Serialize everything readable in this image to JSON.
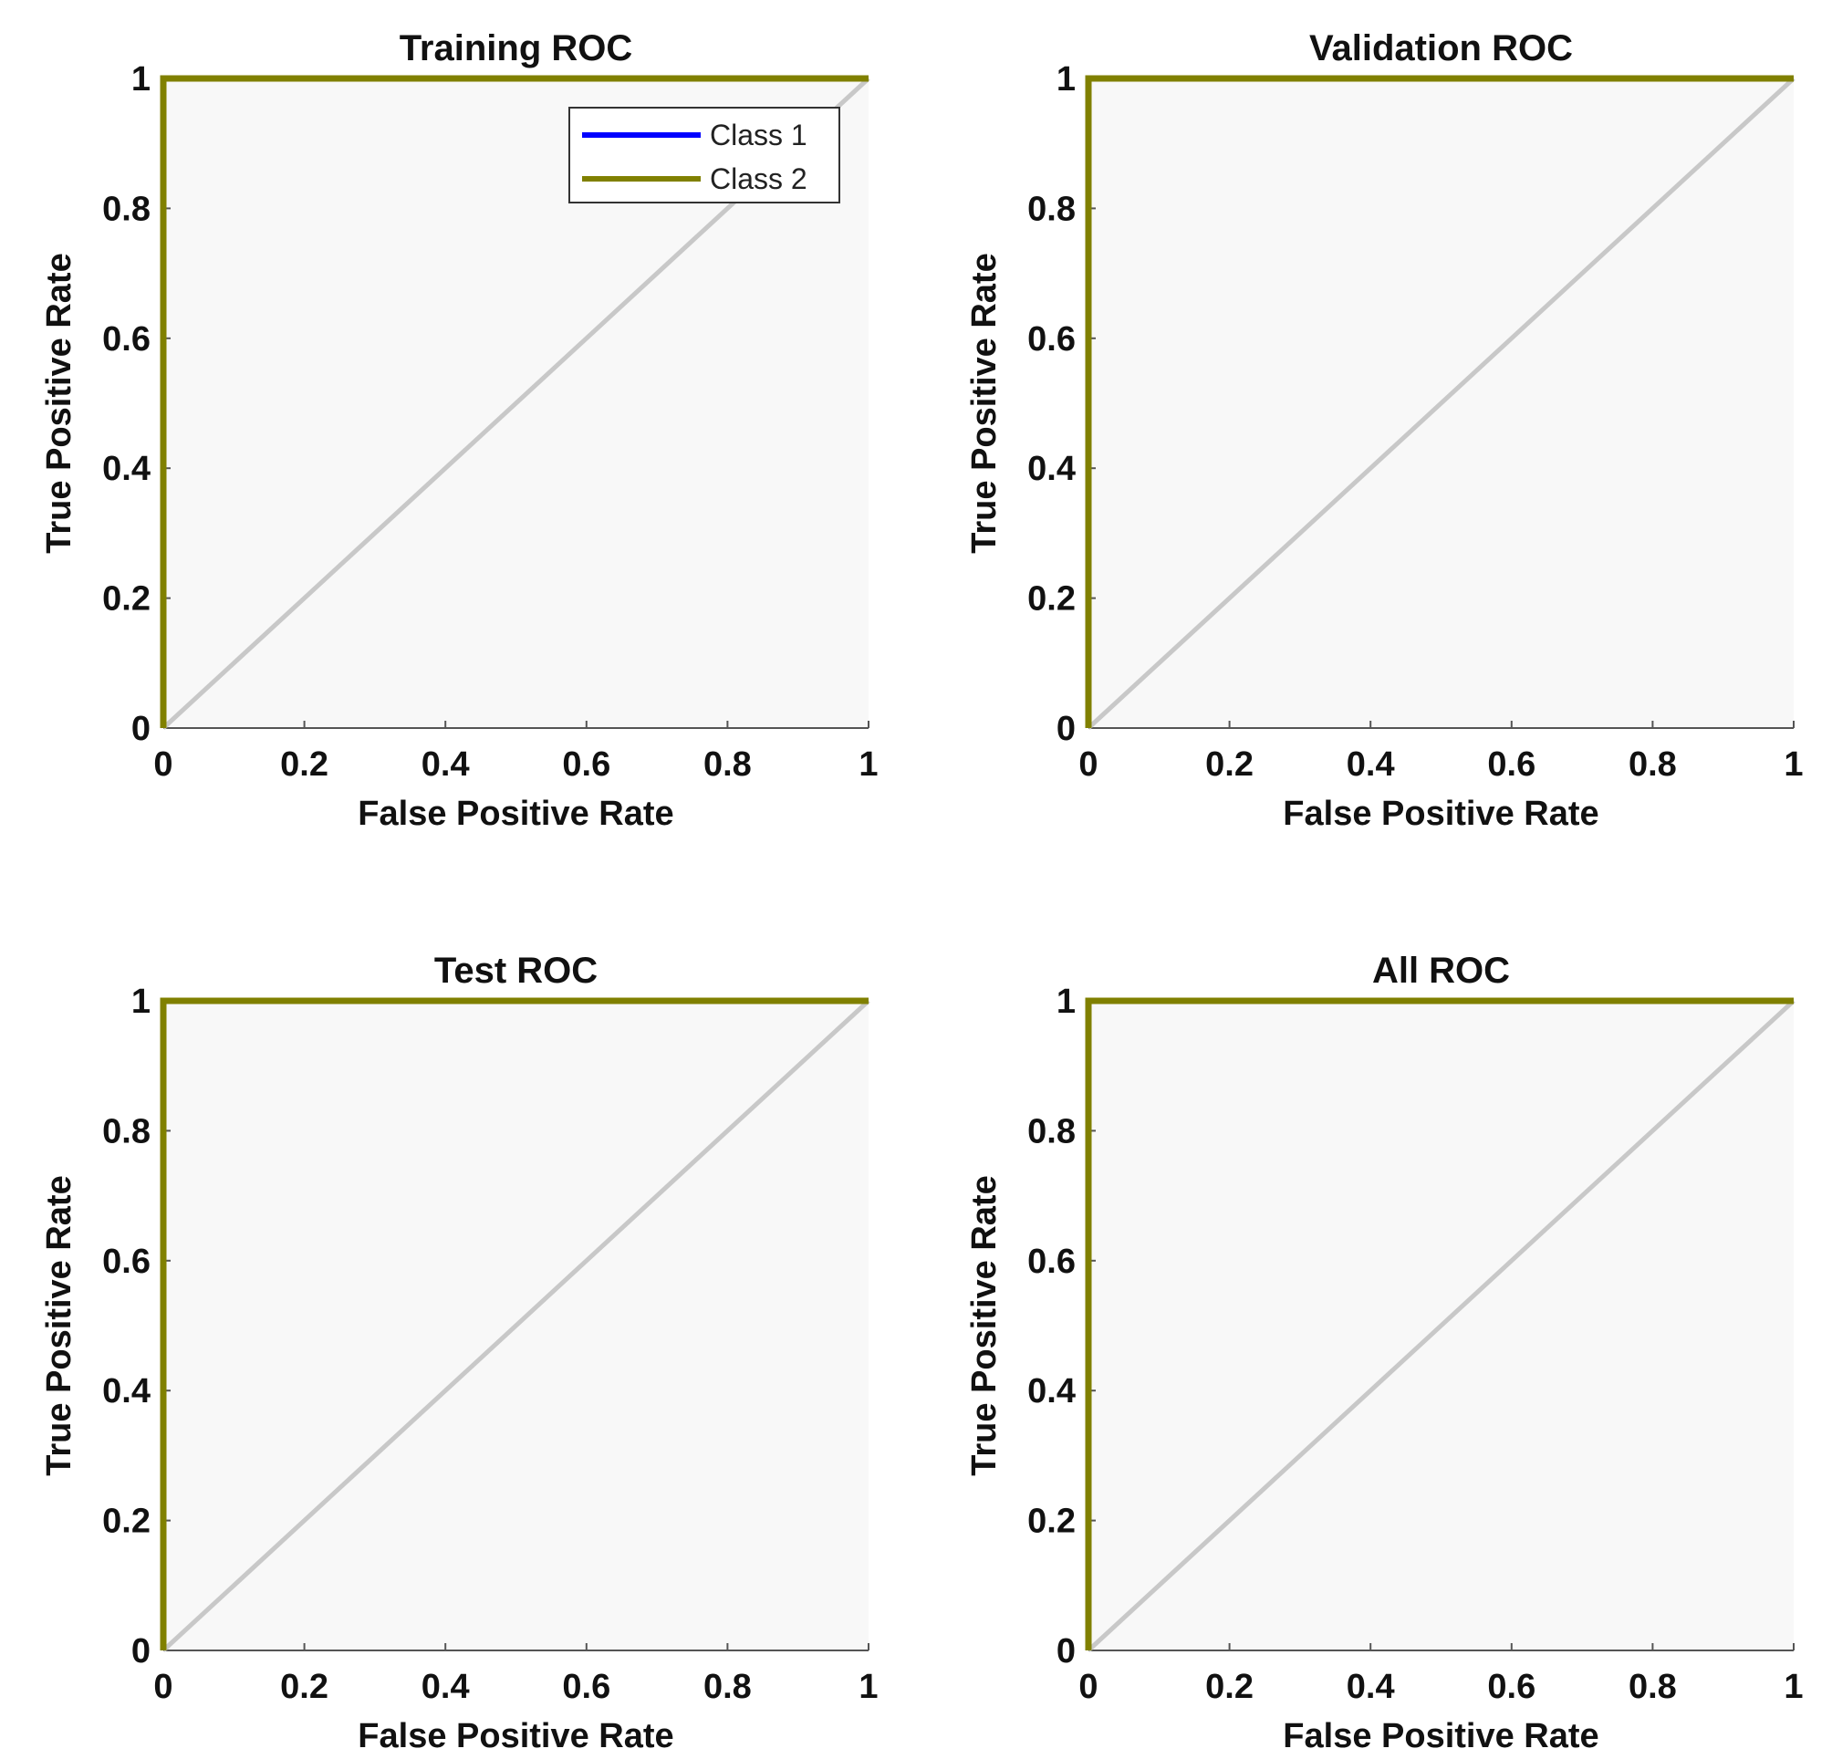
{
  "chart_data": [
    {
      "type": "line",
      "title": "Training ROC",
      "xlabel": "False Positive Rate",
      "ylabel": "True Positive Rate",
      "xlim": [
        0,
        1
      ],
      "ylim": [
        0,
        1
      ],
      "xticks": [
        0,
        0.2,
        0.4,
        0.6,
        0.8,
        1
      ],
      "yticks": [
        0,
        0.2,
        0.4,
        0.6,
        0.8,
        1
      ],
      "xtick_labels": [
        "0",
        "0.2",
        "0.4",
        "0.6",
        "0.8",
        "1"
      ],
      "ytick_labels": [
        "0",
        "0.2",
        "0.4",
        "0.6",
        "0.8",
        "1"
      ],
      "legend": {
        "show": true,
        "position": "top-right"
      },
      "diagonal": {
        "x": [
          0,
          1
        ],
        "y": [
          0,
          1
        ],
        "color": "#c8c8c8"
      },
      "series": [
        {
          "name": "Class 1",
          "color": "#0000ff",
          "x": [
            0,
            0,
            1
          ],
          "y": [
            0,
            1,
            1
          ]
        },
        {
          "name": "Class 2",
          "color": "#808000",
          "x": [
            0,
            0,
            1
          ],
          "y": [
            0,
            1,
            1
          ]
        }
      ]
    },
    {
      "type": "line",
      "title": "Validation ROC",
      "xlabel": "False Positive Rate",
      "ylabel": "True Positive Rate",
      "xlim": [
        0,
        1
      ],
      "ylim": [
        0,
        1
      ],
      "xticks": [
        0,
        0.2,
        0.4,
        0.6,
        0.8,
        1
      ],
      "yticks": [
        0,
        0.2,
        0.4,
        0.6,
        0.8,
        1
      ],
      "xtick_labels": [
        "0",
        "0.2",
        "0.4",
        "0.6",
        "0.8",
        "1"
      ],
      "ytick_labels": [
        "0",
        "0.2",
        "0.4",
        "0.6",
        "0.8",
        "1"
      ],
      "legend": {
        "show": false
      },
      "diagonal": {
        "x": [
          0,
          1
        ],
        "y": [
          0,
          1
        ],
        "color": "#c8c8c8"
      },
      "series": [
        {
          "name": "Class 1",
          "color": "#0000ff",
          "x": [
            0,
            0,
            1
          ],
          "y": [
            0,
            1,
            1
          ]
        },
        {
          "name": "Class 2",
          "color": "#808000",
          "x": [
            0,
            0,
            1
          ],
          "y": [
            0,
            1,
            1
          ]
        }
      ]
    },
    {
      "type": "line",
      "title": "Test ROC",
      "xlabel": "False Positive Rate",
      "ylabel": "True Positive Rate",
      "xlim": [
        0,
        1
      ],
      "ylim": [
        0,
        1
      ],
      "xticks": [
        0,
        0.2,
        0.4,
        0.6,
        0.8,
        1
      ],
      "yticks": [
        0,
        0.2,
        0.4,
        0.6,
        0.8,
        1
      ],
      "xtick_labels": [
        "0",
        "0.2",
        "0.4",
        "0.6",
        "0.8",
        "1"
      ],
      "ytick_labels": [
        "0",
        "0.2",
        "0.4",
        "0.6",
        "0.8",
        "1"
      ],
      "legend": {
        "show": false
      },
      "diagonal": {
        "x": [
          0,
          1
        ],
        "y": [
          0,
          1
        ],
        "color": "#c8c8c8"
      },
      "series": [
        {
          "name": "Class 1",
          "color": "#0000ff",
          "x": [
            0,
            0,
            1
          ],
          "y": [
            0,
            1,
            1
          ]
        },
        {
          "name": "Class 2",
          "color": "#808000",
          "x": [
            0,
            0,
            1
          ],
          "y": [
            0,
            1,
            1
          ]
        }
      ]
    },
    {
      "type": "line",
      "title": "All ROC",
      "xlabel": "False Positive Rate",
      "ylabel": "True Positive Rate",
      "xlim": [
        0,
        1
      ],
      "ylim": [
        0,
        1
      ],
      "xticks": [
        0,
        0.2,
        0.4,
        0.6,
        0.8,
        1
      ],
      "yticks": [
        0,
        0.2,
        0.4,
        0.6,
        0.8,
        1
      ],
      "xtick_labels": [
        "0",
        "0.2",
        "0.4",
        "0.6",
        "0.8",
        "1"
      ],
      "ytick_labels": [
        "0",
        "0.2",
        "0.4",
        "0.6",
        "0.8",
        "1"
      ],
      "legend": {
        "show": false
      },
      "diagonal": {
        "x": [
          0,
          1
        ],
        "y": [
          0,
          1
        ],
        "color": "#c8c8c8"
      },
      "series": [
        {
          "name": "Class 1",
          "color": "#0000ff",
          "x": [
            0,
            0,
            1
          ],
          "y": [
            0,
            1,
            1
          ]
        },
        {
          "name": "Class 2",
          "color": "#808000",
          "x": [
            0,
            0,
            1
          ],
          "y": [
            0,
            1,
            1
          ]
        }
      ]
    }
  ]
}
